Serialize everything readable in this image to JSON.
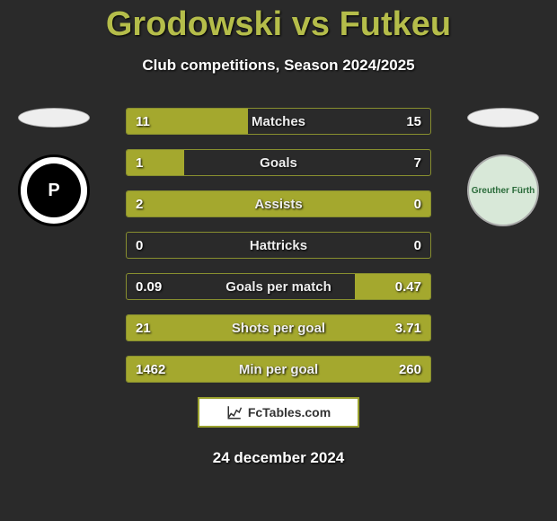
{
  "title": "Grodowski vs Futkeu",
  "subtitle": "Club competitions, Season 2024/2025",
  "date": "24 december 2024",
  "branding_text": "FcTables.com",
  "colors": {
    "accent": "#a4a82e",
    "title": "#b5bd4a",
    "bar_border": "#888f2f",
    "background": "#2a2a2a"
  },
  "left_player": {
    "name": "Grodowski",
    "club_initial": "P"
  },
  "right_player": {
    "name": "Futkeu",
    "club_text": "Greuther Fürth"
  },
  "rows": [
    {
      "label": "Matches",
      "left": "11",
      "right": "15",
      "left_fill_pct": 40,
      "right_fill_pct": 0
    },
    {
      "label": "Goals",
      "left": "1",
      "right": "7",
      "left_fill_pct": 19,
      "right_fill_pct": 0
    },
    {
      "label": "Assists",
      "left": "2",
      "right": "0",
      "left_fill_pct": 100,
      "right_fill_pct": 0
    },
    {
      "label": "Hattricks",
      "left": "0",
      "right": "0",
      "left_fill_pct": 0,
      "right_fill_pct": 0
    },
    {
      "label": "Goals per match",
      "left": "0.09",
      "right": "0.47",
      "left_fill_pct": 0,
      "right_fill_pct": 25
    },
    {
      "label": "Shots per goal",
      "left": "21",
      "right": "3.71",
      "left_fill_pct": 100,
      "right_fill_pct": 0
    },
    {
      "label": "Min per goal",
      "left": "1462",
      "right": "260",
      "left_fill_pct": 100,
      "right_fill_pct": 0
    }
  ]
}
